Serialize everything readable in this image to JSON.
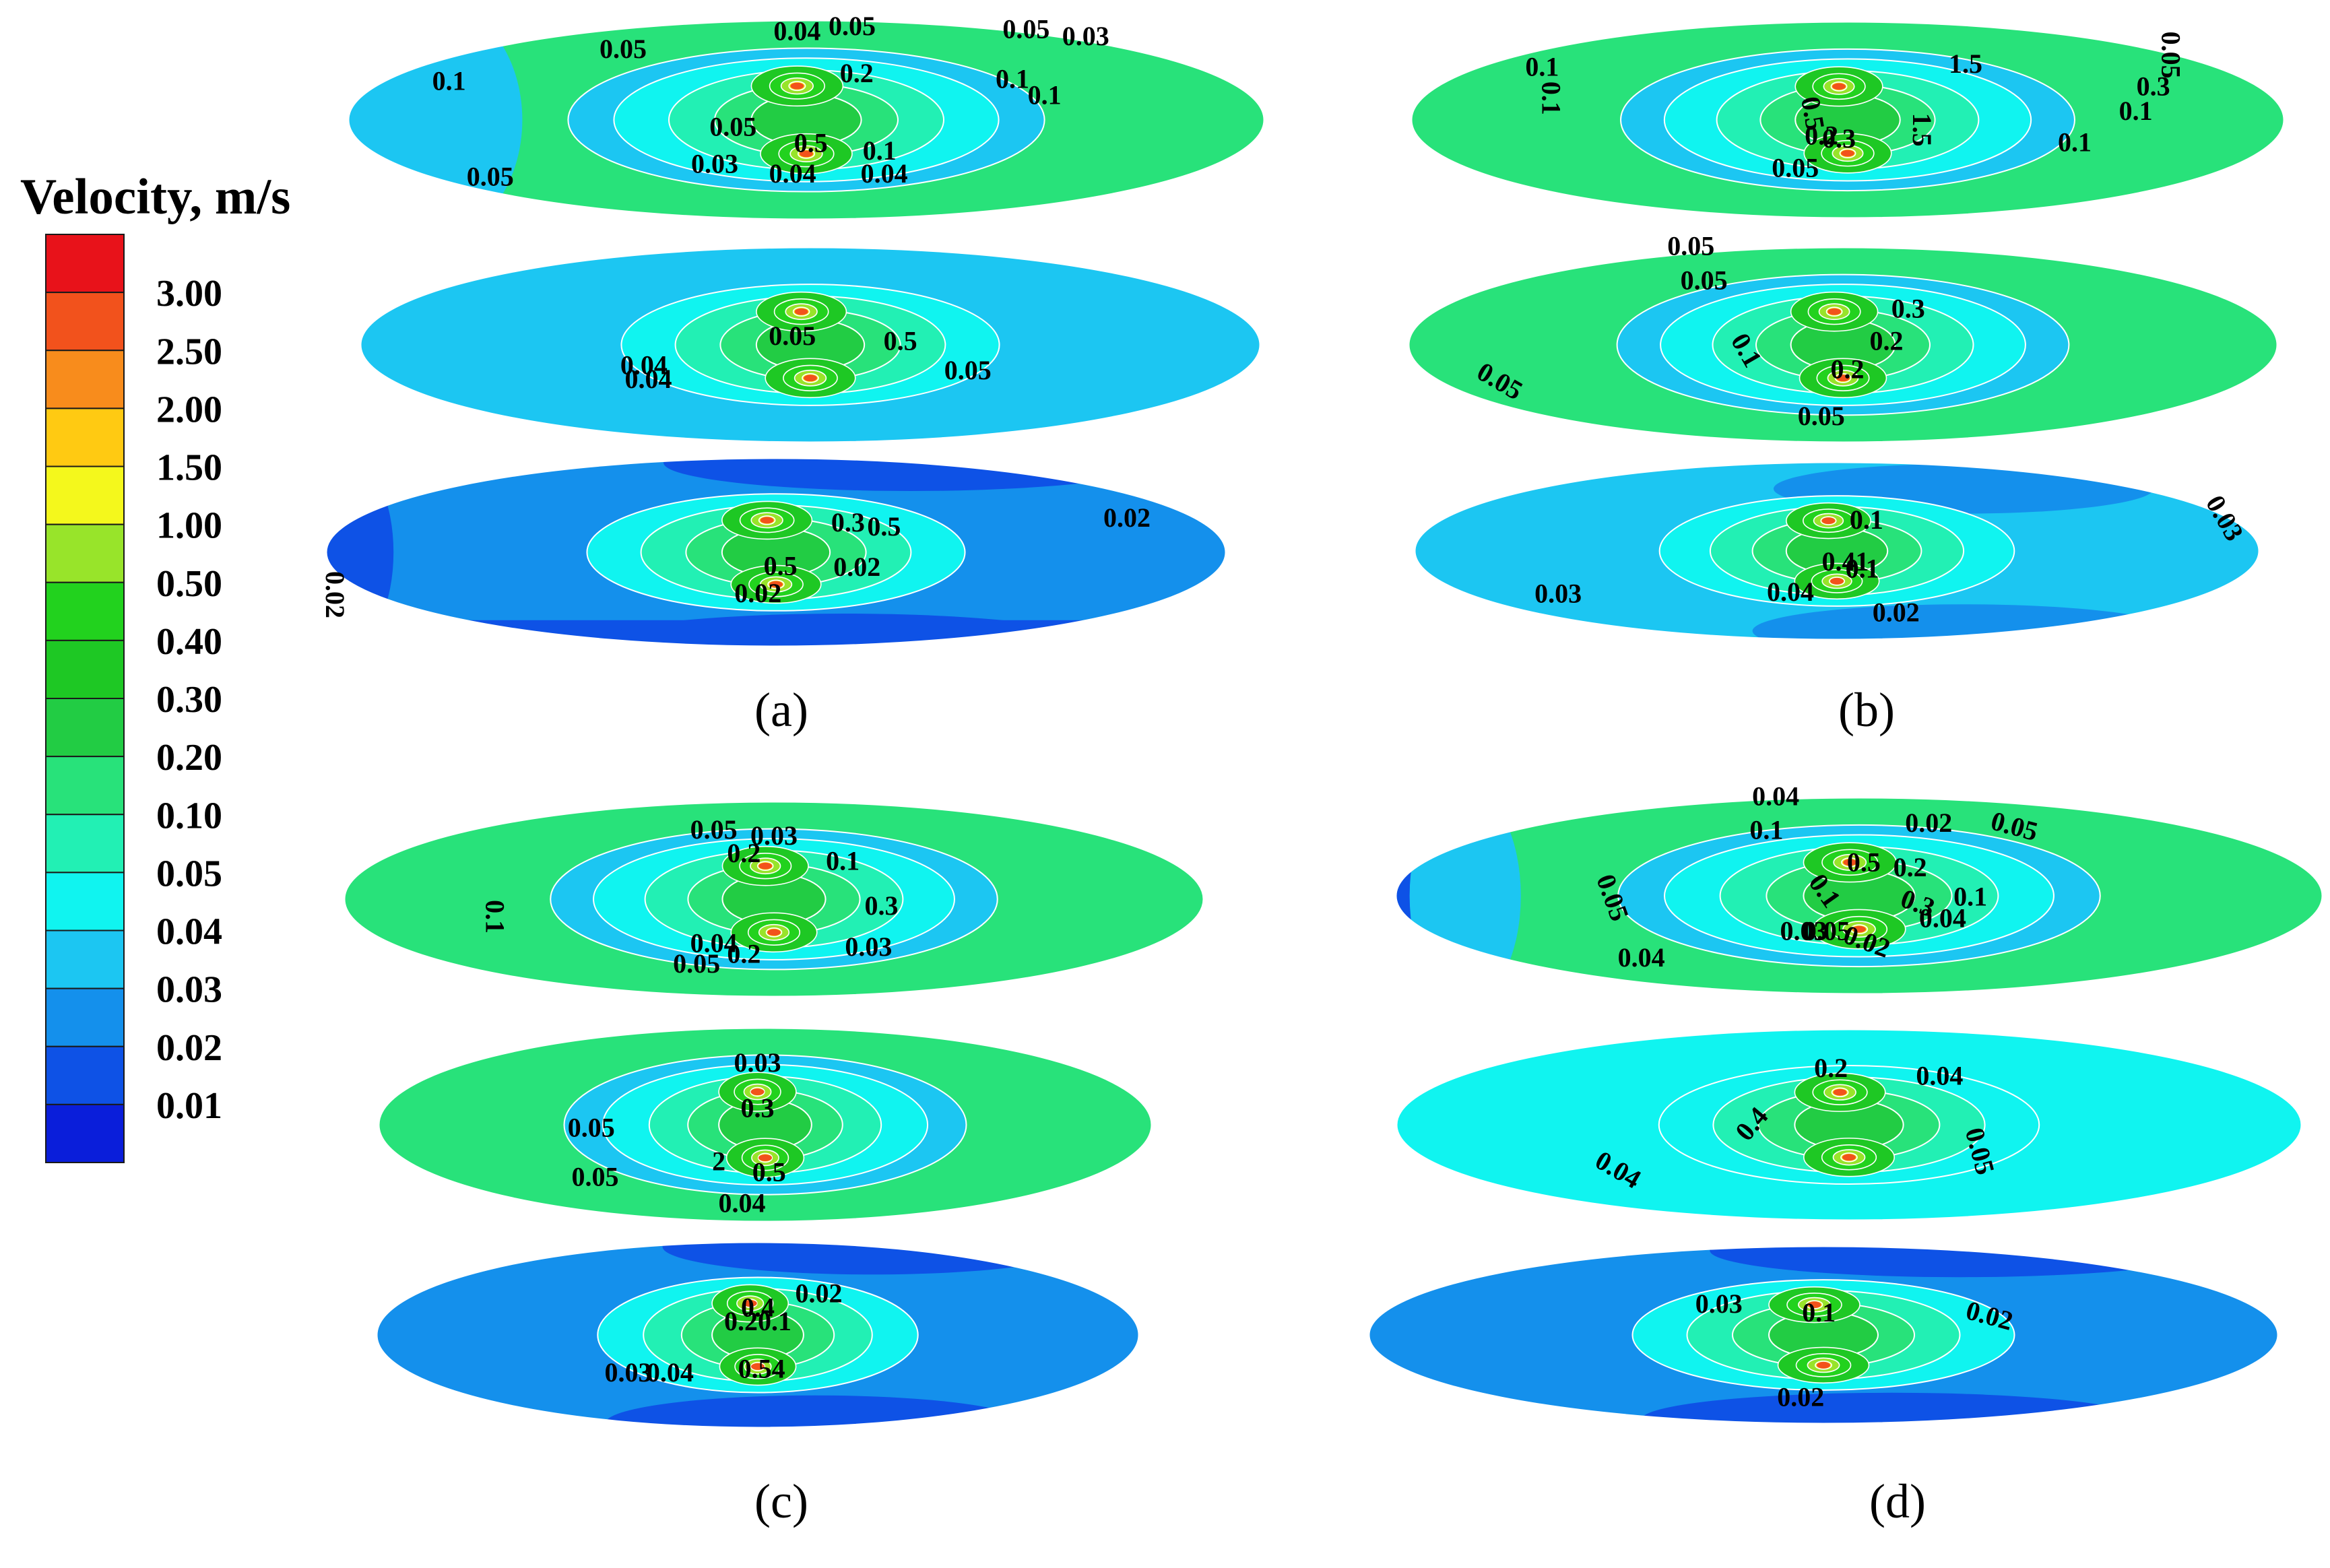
{
  "legend": {
    "title": "Velocity, m/s",
    "levels": [
      {
        "label": "3.00",
        "color": "#e8121a"
      },
      {
        "label": "2.50",
        "color": "#f2521c"
      },
      {
        "label": "2.00",
        "color": "#f88c1c"
      },
      {
        "label": "1.50",
        "color": "#ffca12"
      },
      {
        "label": "1.00",
        "color": "#f4f81c"
      },
      {
        "label": "0.50",
        "color": "#98e42a"
      },
      {
        "label": "0.40",
        "color": "#22d21e"
      },
      {
        "label": "0.30",
        "color": "#1ec824"
      },
      {
        "label": "0.20",
        "color": "#22cc44"
      },
      {
        "label": "0.10",
        "color": "#28e27a"
      },
      {
        "label": "0.05",
        "color": "#22f0b4"
      },
      {
        "label": "0.04",
        "color": "#10f4f0"
      },
      {
        "label": "0.03",
        "color": "#1cc6f2"
      },
      {
        "label": "0.02",
        "color": "#1490ec"
      },
      {
        "label": "0.01",
        "color": "#0e52e6"
      },
      {
        "label": "",
        "color": "#0a1eda"
      }
    ]
  },
  "panels": [
    {
      "caption": "(a)",
      "slices": [
        {
          "base": "#28e27a",
          "outer_ring": "#1cc6f2",
          "labels": [
            "0.05",
            "0.04",
            "0.05",
            "0.05",
            "0.03",
            "0.1",
            "0.2",
            "0.1",
            "0.1",
            "0.05",
            "0.5",
            "0.1",
            "0.03",
            "0.04",
            "0.04",
            "0.05"
          ]
        },
        {
          "base": "#1cc6f2",
          "labels": [
            "0.04",
            "0.05",
            "0.5",
            "0.05",
            "0.04"
          ]
        },
        {
          "base": "#1490ec",
          "labels": [
            "0.02",
            "0.3",
            "0.5",
            "0.02",
            "0.5",
            "0.02",
            "0.02"
          ]
        }
      ]
    },
    {
      "caption": "(b)",
      "slices": [
        {
          "base": "#28e27a",
          "labels": [
            "0.1",
            "1.5",
            "0.05",
            "0.1",
            "0.3",
            "0.1",
            "0.5",
            "0.2",
            "1.5",
            "0.3",
            "0.1",
            "0.05"
          ]
        },
        {
          "base": "#28e27a",
          "labels": [
            "0.05",
            "0.05",
            "0.3",
            "0.1",
            "0.2",
            "0.2",
            "0.05",
            "0.05"
          ]
        },
        {
          "base": "#1cc6f2",
          "labels": [
            "0.03",
            "0.1",
            "0.41",
            "0.1",
            "0.03",
            "0.04",
            "0.02"
          ]
        }
      ]
    },
    {
      "caption": "(c)",
      "slices": [
        {
          "base": "#28e27a",
          "labels": [
            "0.05",
            "0.03",
            "0.2",
            "0.1",
            "0.1",
            "0.3",
            "0.04",
            "0.2",
            "0.03",
            "0.05"
          ]
        },
        {
          "base": "#28e27a",
          "labels": [
            "0.03",
            "0.05",
            "0.3",
            "2",
            "0.5",
            "0.05",
            "0.04"
          ]
        },
        {
          "base": "#1490ec",
          "labels": [
            "0.4",
            "0.02",
            "0.20.1",
            "0.03",
            "0.04",
            "0.54"
          ]
        }
      ]
    },
    {
      "caption": "(d)",
      "slices": [
        {
          "base": "#28e27a",
          "labels": [
            "0.04",
            "0.1",
            "0.02",
            "0.05",
            "0.05",
            "0.5",
            "0.2",
            "0.1",
            "0.3",
            "0.1",
            "0.03",
            "0.05",
            "0.02",
            "0.04",
            "0.04"
          ]
        },
        {
          "base": "#10f4f0",
          "labels": [
            "0.2",
            "0.04",
            "0.4",
            "0.04",
            "0.05"
          ]
        },
        {
          "base": "#1490ec",
          "labels": [
            "0.03",
            "0.1",
            "0.02",
            "0.02"
          ]
        }
      ]
    }
  ]
}
